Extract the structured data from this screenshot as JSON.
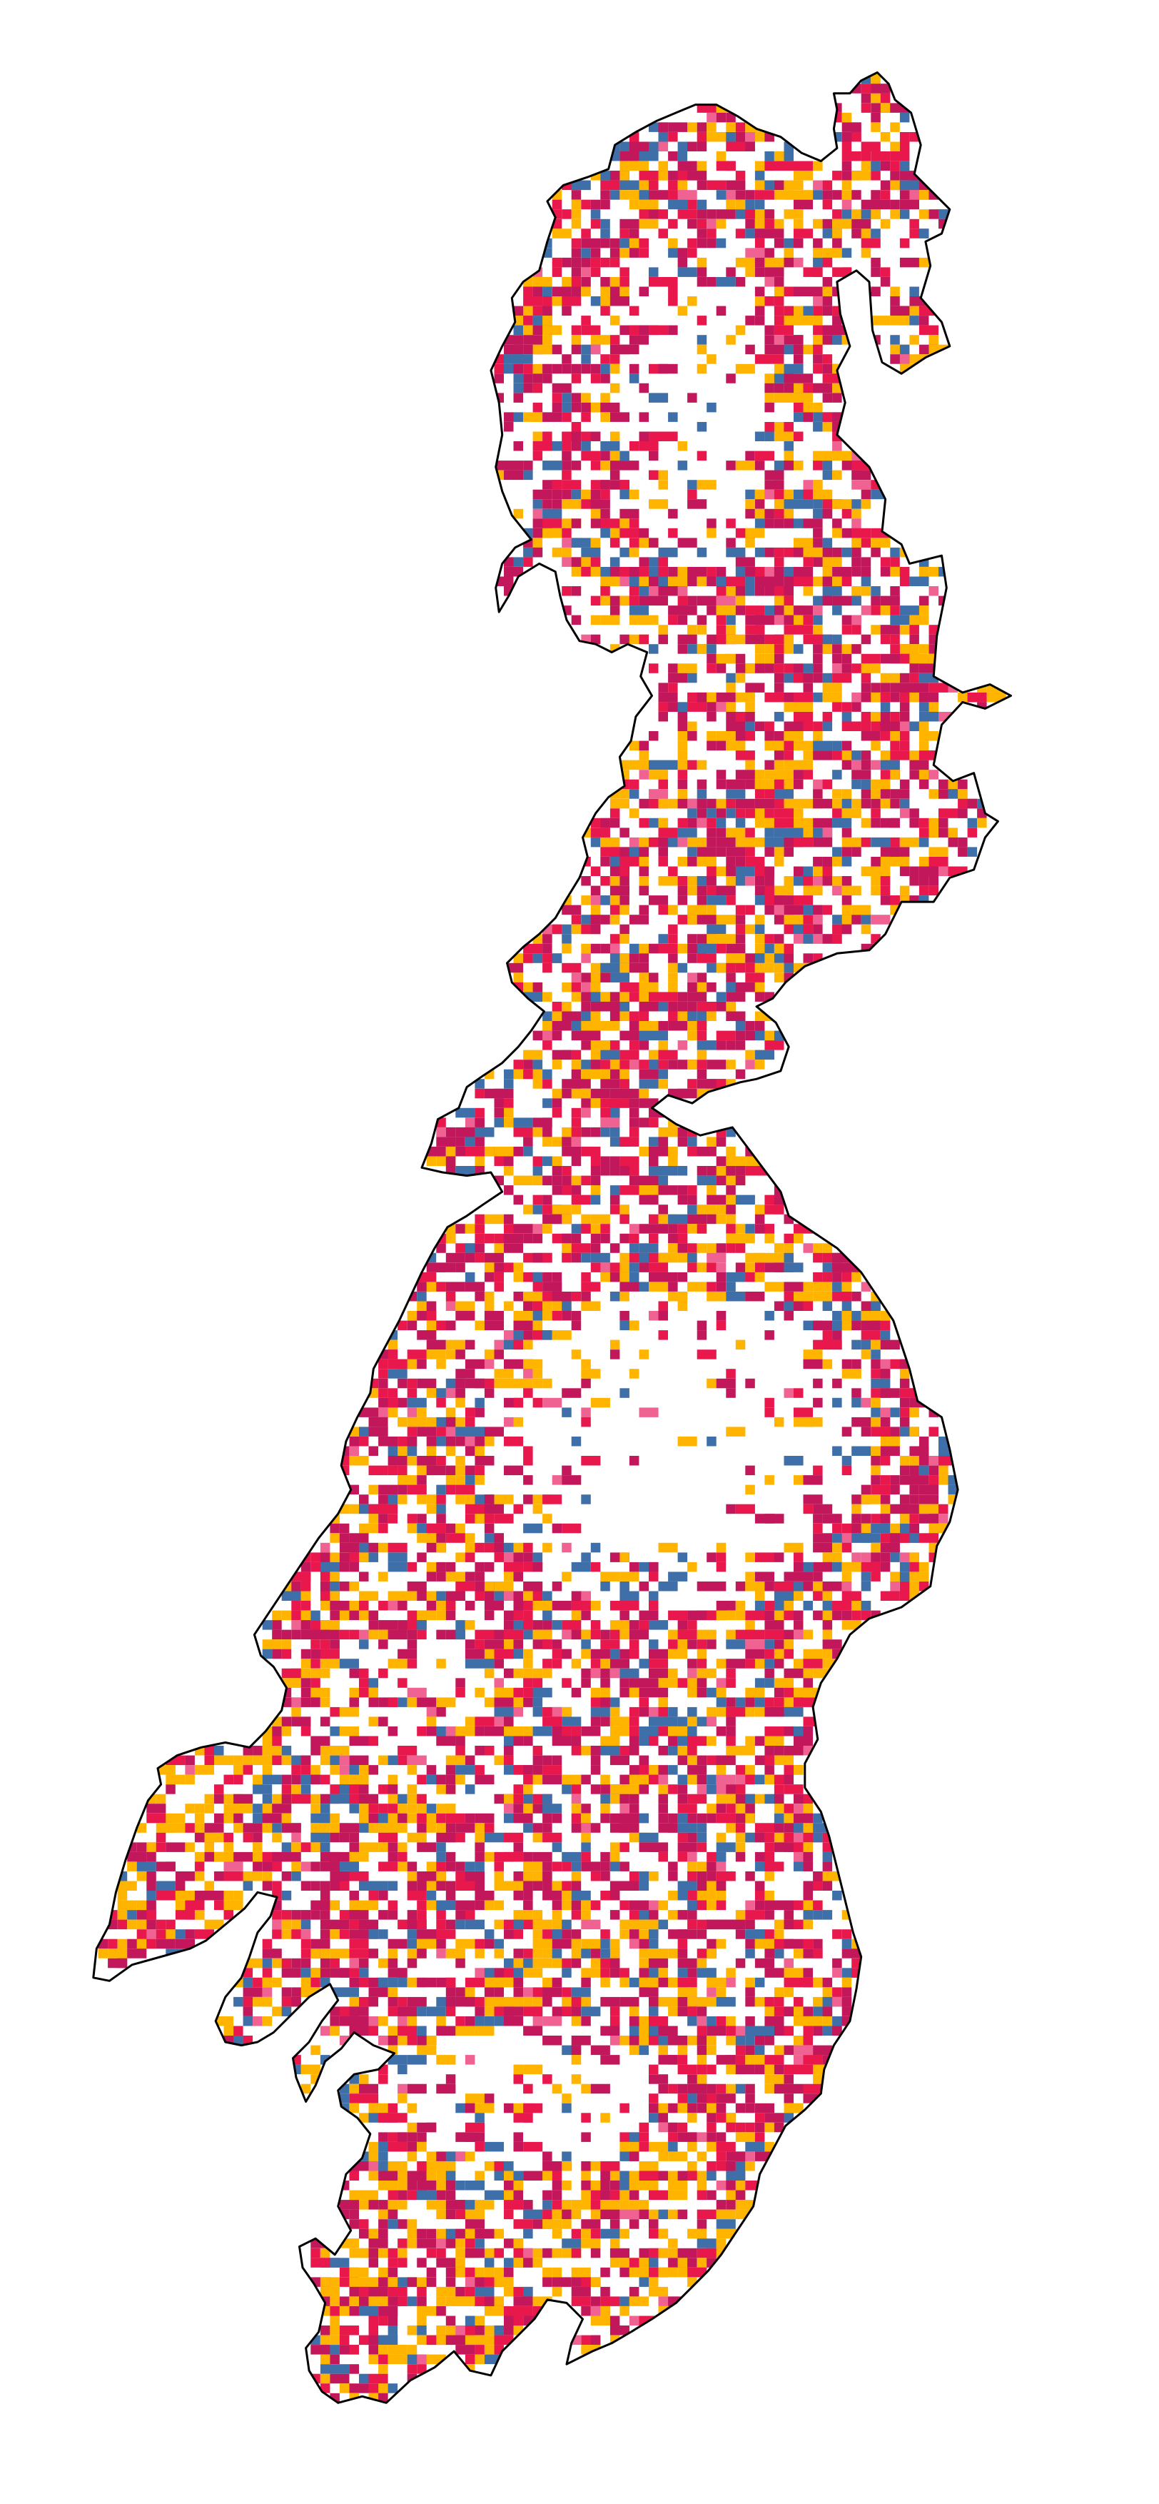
{
  "map": {
    "kind": "choropleth-grid-map",
    "background": "#ffffff",
    "outline_color": "#000000",
    "category_colors": {
      "orange": "#FFB400",
      "magenta": "#C2185B",
      "crimson": "#E8174C",
      "steel_blue": "#3F6FA8",
      "pink": "#F06292"
    },
    "legend": null,
    "labels": []
  }
}
